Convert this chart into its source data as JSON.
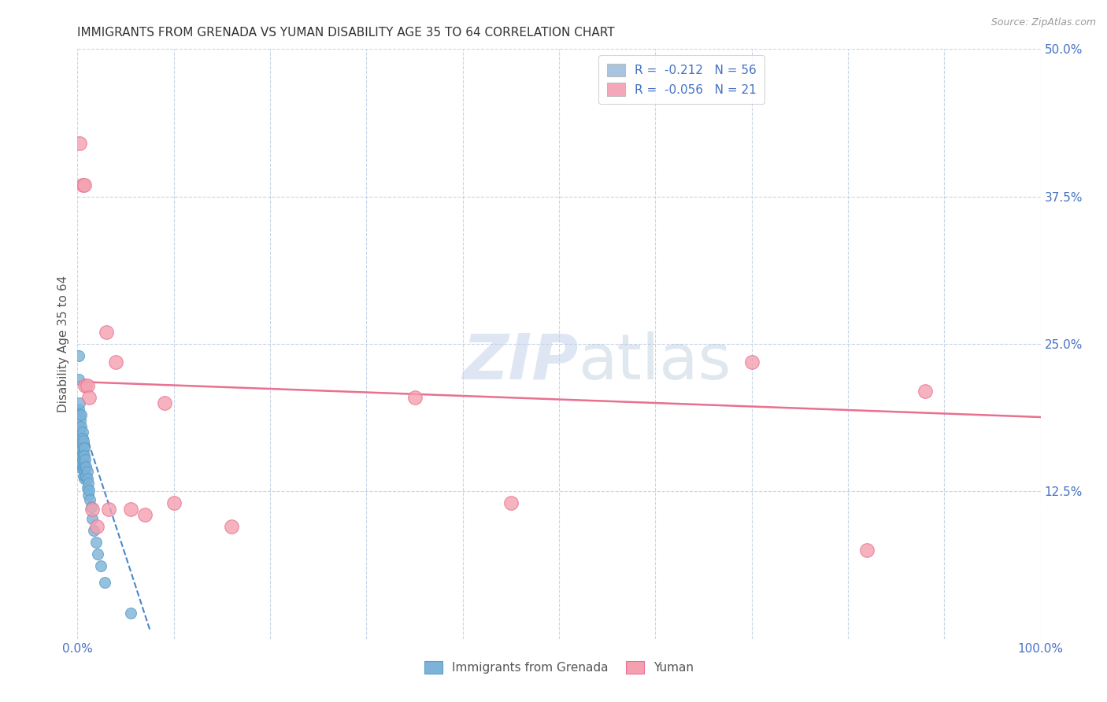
{
  "title": "IMMIGRANTS FROM GRENADA VS YUMAN DISABILITY AGE 35 TO 64 CORRELATION CHART",
  "source": "Source: ZipAtlas.com",
  "ylabel": "Disability Age 35 to 64",
  "xlim": [
    0,
    1.0
  ],
  "ylim": [
    0,
    0.5
  ],
  "yticks": [
    0,
    0.125,
    0.25,
    0.375,
    0.5
  ],
  "ytick_labels": [
    "",
    "12.5%",
    "25.0%",
    "37.5%",
    "50.0%"
  ],
  "xticks": [
    0,
    0.1,
    0.2,
    0.3,
    0.4,
    0.5,
    0.6,
    0.7,
    0.8,
    0.9,
    1.0
  ],
  "xtick_labels": [
    "0.0%",
    "",
    "",
    "",
    "",
    "",
    "",
    "",
    "",
    "",
    "100.0%"
  ],
  "legend_entries": [
    {
      "label": "R =  -0.212   N = 56",
      "color": "#a8c4e0"
    },
    {
      "label": "R =  -0.056   N = 21",
      "color": "#f4a7b9"
    }
  ],
  "series1_color": "#7db3d8",
  "series2_color": "#f4a0b0",
  "series1_edge": "#5b9ec9",
  "series2_edge": "#e87090",
  "trendline1_color": "#4a86c8",
  "trendline2_color": "#e87090",
  "watermark_zip": "ZIP",
  "watermark_atlas": "atlas",
  "scatter1_x": [
    0.001,
    0.001,
    0.001,
    0.002,
    0.002,
    0.002,
    0.002,
    0.003,
    0.003,
    0.003,
    0.003,
    0.003,
    0.004,
    0.004,
    0.004,
    0.004,
    0.004,
    0.004,
    0.004,
    0.005,
    0.005,
    0.005,
    0.005,
    0.005,
    0.005,
    0.006,
    0.006,
    0.006,
    0.006,
    0.006,
    0.006,
    0.007,
    0.007,
    0.007,
    0.007,
    0.007,
    0.008,
    0.008,
    0.008,
    0.009,
    0.009,
    0.01,
    0.01,
    0.01,
    0.011,
    0.011,
    0.012,
    0.013,
    0.014,
    0.015,
    0.017,
    0.019,
    0.021,
    0.024,
    0.028,
    0.055
  ],
  "scatter1_y": [
    0.24,
    0.22,
    0.195,
    0.2,
    0.19,
    0.18,
    0.17,
    0.185,
    0.175,
    0.165,
    0.155,
    0.145,
    0.19,
    0.18,
    0.17,
    0.165,
    0.16,
    0.155,
    0.148,
    0.175,
    0.17,
    0.165,
    0.158,
    0.152,
    0.145,
    0.168,
    0.162,
    0.156,
    0.15,
    0.145,
    0.138,
    0.162,
    0.155,
    0.148,
    0.142,
    0.136,
    0.152,
    0.145,
    0.138,
    0.146,
    0.138,
    0.142,
    0.136,
    0.128,
    0.132,
    0.122,
    0.126,
    0.118,
    0.112,
    0.102,
    0.092,
    0.082,
    0.072,
    0.062,
    0.048,
    0.022
  ],
  "scatter2_x": [
    0.002,
    0.005,
    0.007,
    0.008,
    0.01,
    0.012,
    0.015,
    0.02,
    0.03,
    0.032,
    0.04,
    0.055,
    0.07,
    0.09,
    0.1,
    0.16,
    0.35,
    0.45,
    0.7,
    0.82,
    0.88
  ],
  "scatter2_y": [
    0.42,
    0.385,
    0.385,
    0.215,
    0.215,
    0.205,
    0.11,
    0.095,
    0.26,
    0.11,
    0.235,
    0.11,
    0.105,
    0.2,
    0.115,
    0.095,
    0.205,
    0.115,
    0.235,
    0.075,
    0.21
  ],
  "trendline1_x": [
    0.0,
    0.075
  ],
  "trendline1_y": [
    0.195,
    0.008
  ],
  "trendline2_x": [
    0.0,
    1.0
  ],
  "trendline2_y": [
    0.218,
    0.188
  ],
  "bg_color": "#ffffff",
  "grid_color": "#c8d4e8",
  "title_color": "#333333",
  "axis_label_color": "#555555",
  "tick_color": "#4472c4",
  "right_tick_color": "#4472c4"
}
